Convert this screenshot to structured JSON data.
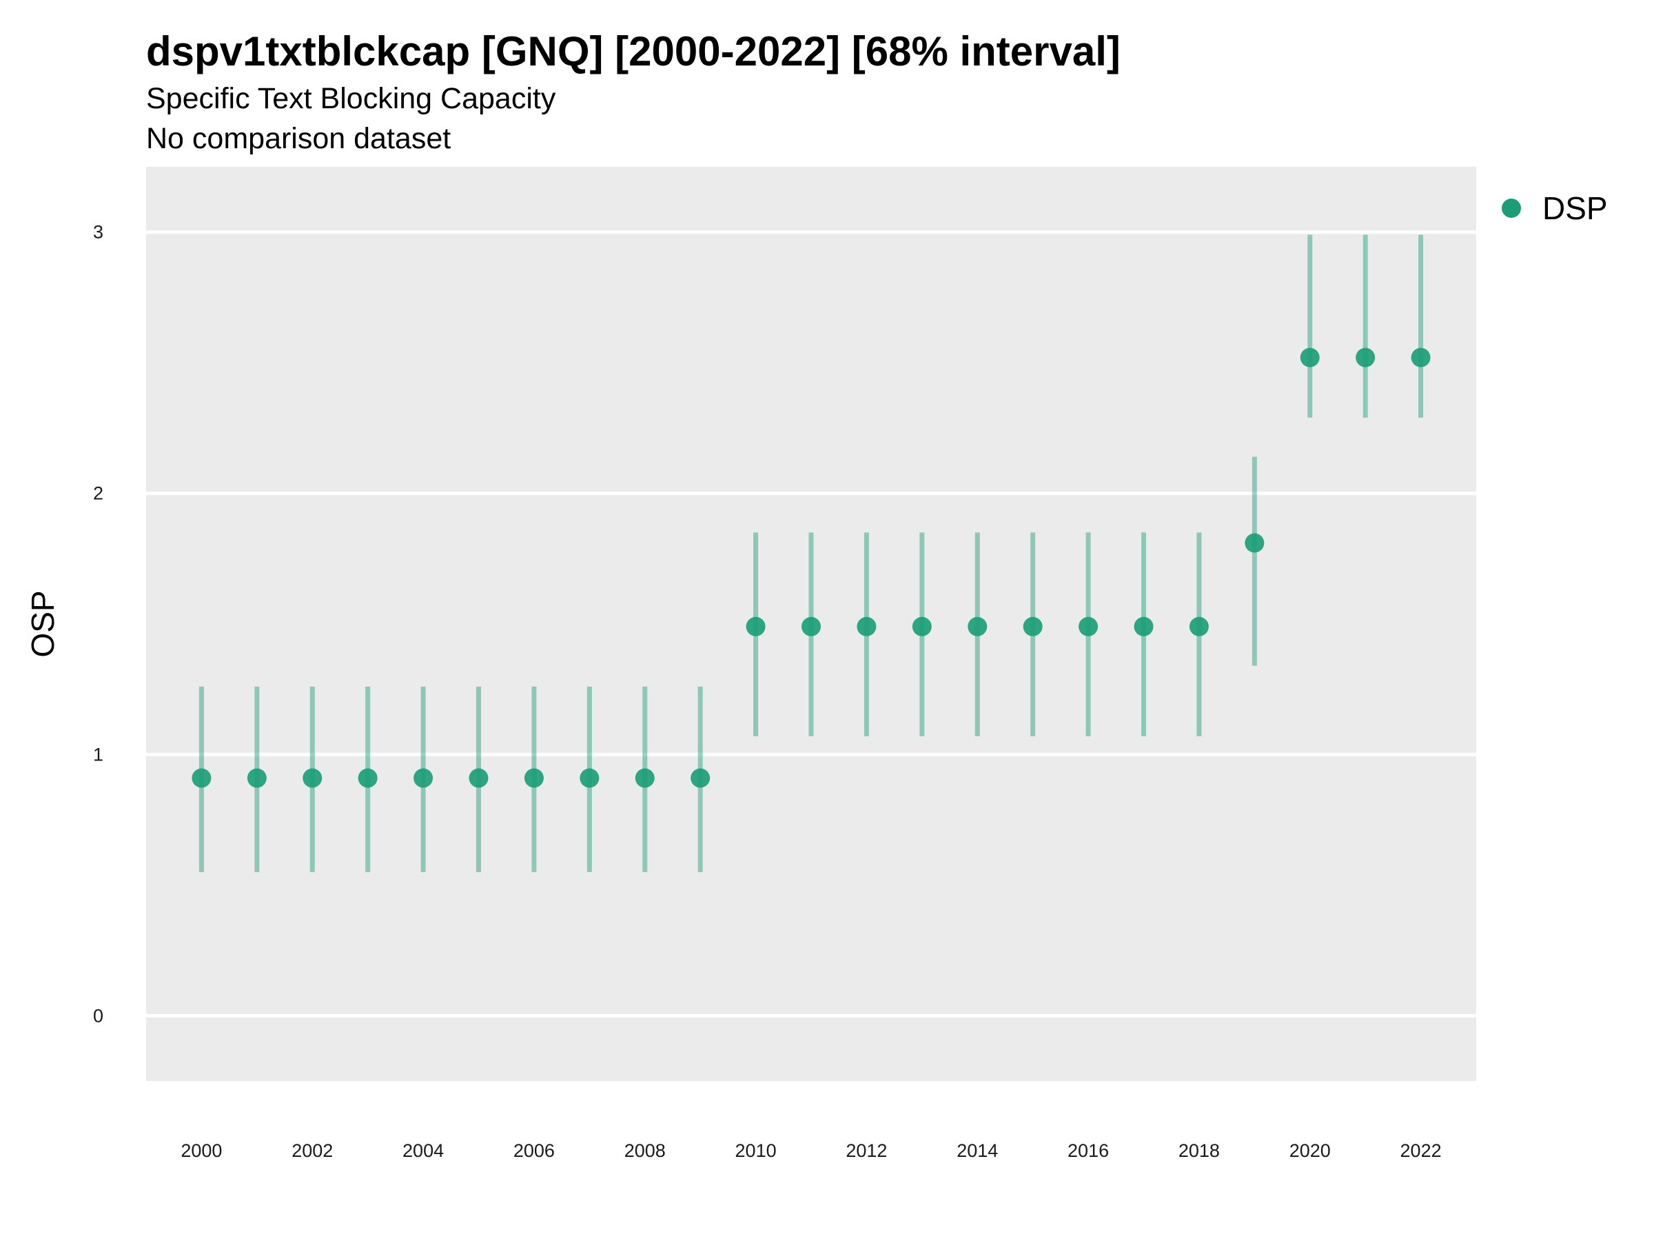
{
  "chart_data": {
    "type": "scatter",
    "title": "dspv1txtblckcap [GNQ] [2000-2022] [68% interval]",
    "subtitle": "Specific Text Blocking Capacity",
    "caption_line": "No comparison dataset",
    "xlabel": "",
    "ylabel": "OSP",
    "xlim": [
      1999.0,
      2023.0
    ],
    "ylim": [
      -0.25,
      3.25
    ],
    "x_ticks": [
      2000,
      2002,
      2004,
      2006,
      2008,
      2010,
      2012,
      2014,
      2016,
      2018,
      2020,
      2022
    ],
    "y_ticks": [
      0,
      1,
      2,
      3
    ],
    "grid": "horizontal major lines",
    "legend_position": "top-right outside",
    "colors": {
      "point": "#1b9e77",
      "interval": "#1b9e77",
      "panel": "#ebebeb",
      "grid": "#ffffff"
    },
    "series": [
      {
        "name": "DSP",
        "points": [
          {
            "x": 2000,
            "y": 0.91,
            "lo": 0.55,
            "hi": 1.26
          },
          {
            "x": 2001,
            "y": 0.91,
            "lo": 0.55,
            "hi": 1.26
          },
          {
            "x": 2002,
            "y": 0.91,
            "lo": 0.55,
            "hi": 1.26
          },
          {
            "x": 2003,
            "y": 0.91,
            "lo": 0.55,
            "hi": 1.26
          },
          {
            "x": 2004,
            "y": 0.91,
            "lo": 0.55,
            "hi": 1.26
          },
          {
            "x": 2005,
            "y": 0.91,
            "lo": 0.55,
            "hi": 1.26
          },
          {
            "x": 2006,
            "y": 0.91,
            "lo": 0.55,
            "hi": 1.26
          },
          {
            "x": 2007,
            "y": 0.91,
            "lo": 0.55,
            "hi": 1.26
          },
          {
            "x": 2008,
            "y": 0.91,
            "lo": 0.55,
            "hi": 1.26
          },
          {
            "x": 2009,
            "y": 0.91,
            "lo": 0.55,
            "hi": 1.26
          },
          {
            "x": 2010,
            "y": 1.49,
            "lo": 1.07,
            "hi": 1.85
          },
          {
            "x": 2011,
            "y": 1.49,
            "lo": 1.07,
            "hi": 1.85
          },
          {
            "x": 2012,
            "y": 1.49,
            "lo": 1.07,
            "hi": 1.85
          },
          {
            "x": 2013,
            "y": 1.49,
            "lo": 1.07,
            "hi": 1.85
          },
          {
            "x": 2014,
            "y": 1.49,
            "lo": 1.07,
            "hi": 1.85
          },
          {
            "x": 2015,
            "y": 1.49,
            "lo": 1.07,
            "hi": 1.85
          },
          {
            "x": 2016,
            "y": 1.49,
            "lo": 1.07,
            "hi": 1.85
          },
          {
            "x": 2017,
            "y": 1.49,
            "lo": 1.07,
            "hi": 1.85
          },
          {
            "x": 2018,
            "y": 1.49,
            "lo": 1.07,
            "hi": 1.85
          },
          {
            "x": 2019,
            "y": 1.81,
            "lo": 1.34,
            "hi": 2.14
          },
          {
            "x": 2020,
            "y": 2.52,
            "lo": 2.29,
            "hi": 2.99
          },
          {
            "x": 2021,
            "y": 2.52,
            "lo": 2.29,
            "hi": 2.99
          },
          {
            "x": 2022,
            "y": 2.52,
            "lo": 2.29,
            "hi": 2.99
          }
        ]
      }
    ]
  }
}
